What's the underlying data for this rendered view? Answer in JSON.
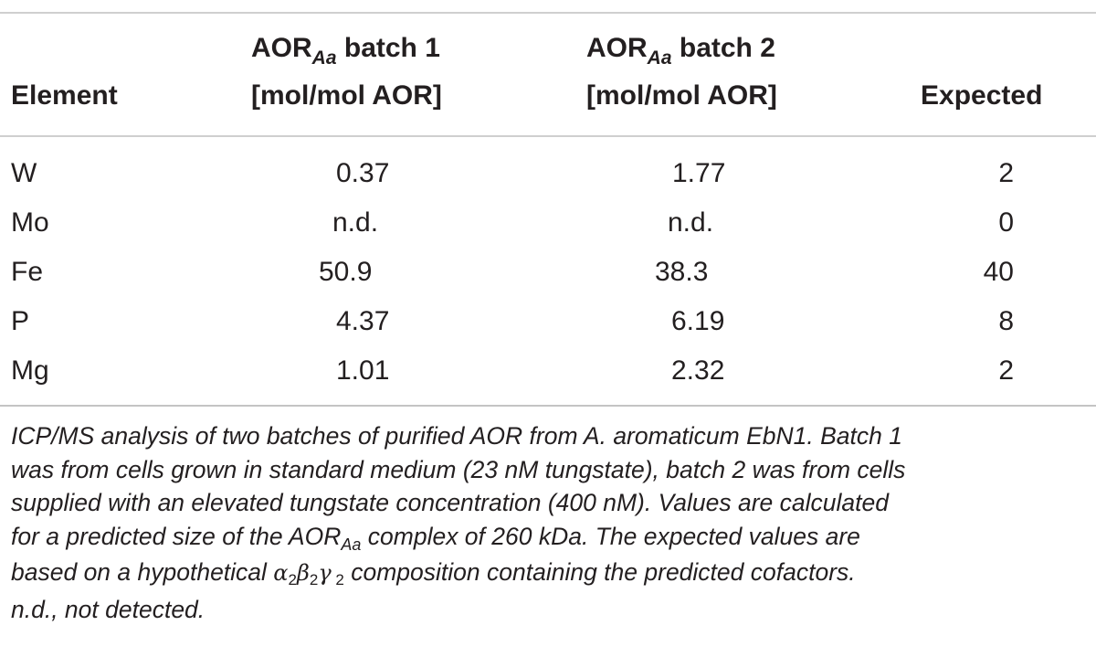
{
  "table": {
    "headers": {
      "element": "Element",
      "batch1_line1_pre": "AOR",
      "batch1_line1_sub": "Aa",
      "batch1_line1_post": " batch 1",
      "batch1_line2": "[mol/mol AOR]",
      "batch2_line1_pre": "AOR",
      "batch2_line1_sub": "Aa",
      "batch2_line1_post": " batch 2",
      "batch2_line2": "[mol/mol AOR]",
      "expected": "Expected"
    },
    "rows": [
      {
        "element": "W",
        "batch1": "0.37",
        "batch2": "1.77",
        "expected": "2"
      },
      {
        "element": "Mo",
        "batch1": "n.d.",
        "batch2": "n.d.",
        "expected": "0"
      },
      {
        "element": "Fe",
        "batch1": "50.9",
        "batch2": "38.3",
        "expected": "40"
      },
      {
        "element": "P",
        "batch1": "4.37",
        "batch2": "6.19",
        "expected": "8"
      },
      {
        "element": "Mg",
        "batch1": "1.01",
        "batch2": "2.32",
        "expected": "2"
      }
    ]
  },
  "caption": {
    "line1": "ICP/MS analysis of two batches of purified AOR from A. aromaticum EbN1. Batch 1",
    "line2": "was from cells grown in standard medium (23 nM tungstate), batch 2 was from cells",
    "line3": "supplied with an elevated tungstate concentration (400 nM). Values are calculated",
    "line4_pre": "for a predicted size of the AOR",
    "line4_sub": "Aa",
    "line4_post": " complex of 260 kDa. The expected values are",
    "line5_pre": "based on a hypothetical ",
    "line5_alpha": "α",
    "line5_beta": "β",
    "line5_gamma": "γ",
    "line5_idx": "2",
    "line5_post": " composition containing the predicted cofactors.",
    "line6": "n.d., not detected."
  }
}
